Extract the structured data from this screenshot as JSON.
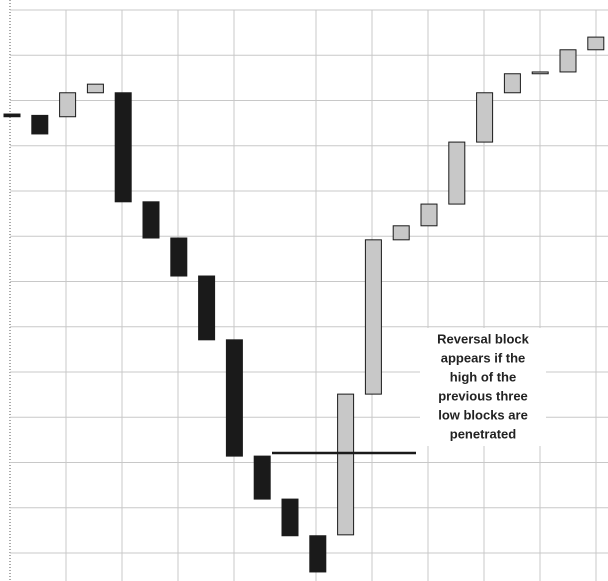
{
  "chart_data": {
    "type": "blocks",
    "ylim": [
      -0.62,
      12.22
    ],
    "yticks": [
      0,
      1,
      2,
      3,
      4,
      5,
      6,
      7,
      8,
      9,
      10,
      11,
      12
    ],
    "grid": true,
    "blocks": [
      {
        "low": 9.64,
        "high": 9.7,
        "color": "#1a1a1a"
      },
      {
        "low": 9.26,
        "high": 9.67,
        "color": "#1a1a1a"
      },
      {
        "low": 9.64,
        "high": 10.17,
        "color": "#c8c8c8"
      },
      {
        "low": 10.17,
        "high": 10.36,
        "color": "#c8c8c8"
      },
      {
        "low": 7.76,
        "high": 10.17,
        "color": "#1a1a1a"
      },
      {
        "low": 6.96,
        "high": 7.76,
        "color": "#1a1a1a"
      },
      {
        "low": 6.12,
        "high": 6.96,
        "color": "#1a1a1a"
      },
      {
        "low": 4.71,
        "high": 6.12,
        "color": "#1a1a1a"
      },
      {
        "low": 2.14,
        "high": 4.71,
        "color": "#1a1a1a"
      },
      {
        "low": 1.19,
        "high": 2.14,
        "color": "#1a1a1a"
      },
      {
        "low": 0.38,
        "high": 1.19,
        "color": "#1a1a1a"
      },
      {
        "low": -0.42,
        "high": 0.38,
        "color": "#1a1a1a"
      },
      {
        "low": 0.4,
        "high": 3.51,
        "color": "#c8c8c8"
      },
      {
        "low": 3.51,
        "high": 6.92,
        "color": "#c8c8c8"
      },
      {
        "low": 6.92,
        "high": 7.23,
        "color": "#c8c8c8"
      },
      {
        "low": 7.23,
        "high": 7.71,
        "color": "#c8c8c8"
      },
      {
        "low": 7.71,
        "high": 9.08,
        "color": "#c8c8c8"
      },
      {
        "low": 9.08,
        "high": 10.17,
        "color": "#c8c8c8"
      },
      {
        "low": 10.17,
        "high": 10.59,
        "color": "#c8c8c8"
      },
      {
        "low": 10.59,
        "high": 10.63,
        "color": "#c8c8c8"
      },
      {
        "low": 10.63,
        "high": 11.12,
        "color": "#c8c8c8"
      },
      {
        "low": 11.12,
        "high": 11.4,
        "color": "#c8c8c8"
      }
    ],
    "reference_line": {
      "value": 2.21,
      "color": "#1a1a1a"
    },
    "annotation": [
      "Reversal block",
      "appears if the",
      "high of the",
      "previous three",
      "low blocks are",
      "penetrated"
    ]
  }
}
